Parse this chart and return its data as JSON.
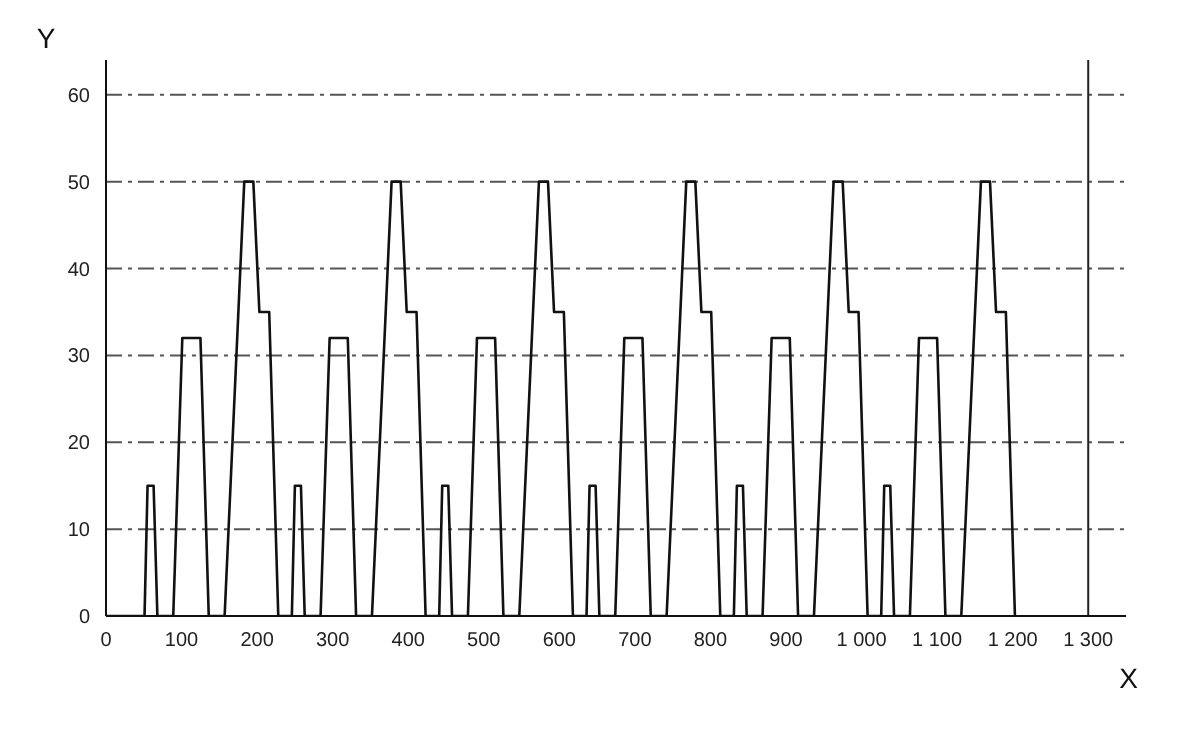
{
  "chart_data": {
    "type": "line",
    "xlabel": "X",
    "ylabel": "Y",
    "xlim": [
      0,
      1350
    ],
    "ylim": [
      0,
      64
    ],
    "xticks": [
      0,
      100,
      200,
      300,
      400,
      500,
      600,
      700,
      800,
      900,
      {
        "value": 1000,
        "label": "1 000"
      },
      {
        "value": 1100,
        "label": "1 100"
      },
      {
        "value": 1200,
        "label": "1 200"
      },
      {
        "value": 1300,
        "label": "1 300"
      }
    ],
    "yticks": [
      0,
      10,
      20,
      30,
      40,
      50,
      60
    ],
    "grid": "y",
    "line_style": "solid",
    "marker": "none",
    "ref_lines": [
      {
        "axis": "x",
        "value": 1300,
        "color": "#222222"
      }
    ],
    "series": [
      {
        "color": "#111111",
        "x": [
          0,
          51,
          55,
          63,
          68,
          89,
          101,
          125,
          136,
          157,
          183,
          195,
          203,
          216,
          228,
          246,
          250,
          258,
          263,
          284,
          296,
          320,
          331,
          352,
          378,
          390,
          398,
          411,
          423,
          441,
          445,
          453,
          458,
          479,
          491,
          515,
          526,
          547,
          573,
          585,
          593,
          606,
          618,
          636,
          640,
          648,
          653,
          674,
          686,
          710,
          721,
          742,
          768,
          780,
          788,
          801,
          813,
          831,
          835,
          843,
          848,
          869,
          881,
          905,
          916,
          937,
          963,
          975,
          983,
          996,
          1008,
          1026,
          1030,
          1038,
          1043,
          1064,
          1076,
          1100,
          1111,
          1132,
          1158,
          1170,
          1178,
          1191,
          1203
        ],
        "values": [
          0,
          0,
          15,
          15,
          0,
          0,
          32,
          32,
          0,
          0,
          50,
          50,
          35,
          35,
          0,
          0,
          15,
          15,
          0,
          0,
          32,
          32,
          0,
          0,
          50,
          50,
          35,
          35,
          0,
          0,
          15,
          15,
          0,
          0,
          32,
          32,
          0,
          0,
          50,
          50,
          35,
          35,
          0,
          0,
          15,
          15,
          0,
          0,
          32,
          32,
          0,
          0,
          50,
          50,
          35,
          35,
          0,
          0,
          15,
          15,
          0,
          0,
          32,
          32,
          0,
          0,
          50,
          50,
          35,
          35,
          0,
          0,
          15,
          15,
          0,
          0,
          32,
          32,
          0,
          0,
          50,
          50,
          35,
          35,
          0
        ]
      }
    ]
  }
}
